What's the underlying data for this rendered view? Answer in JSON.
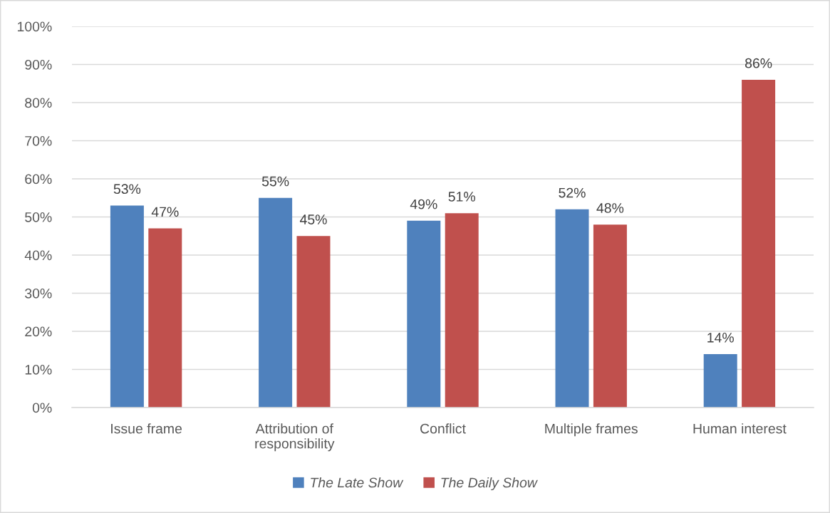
{
  "chart_data": {
    "type": "bar",
    "categories": [
      "Issue frame",
      "Attribution of\nresponsibility",
      "Conflict",
      "Multiple frames",
      "Human interest"
    ],
    "series": [
      {
        "name": "The Late Show",
        "color": "#4f81bd",
        "values": [
          53,
          55,
          49,
          52,
          14
        ],
        "value_labels": [
          "53%",
          "55%",
          "49%",
          "52%",
          "14%"
        ]
      },
      {
        "name": "The Daily Show",
        "color": "#c0504d",
        "values": [
          47,
          45,
          51,
          48,
          86
        ],
        "value_labels": [
          "47%",
          "45%",
          "51%",
          "48%",
          "86%"
        ]
      }
    ],
    "ylim": [
      0,
      100
    ],
    "yticks": [
      {
        "value": 0,
        "label": "0%"
      },
      {
        "value": 10,
        "label": "10%"
      },
      {
        "value": 20,
        "label": "20%"
      },
      {
        "value": 30,
        "label": "30%"
      },
      {
        "value": 40,
        "label": "40%"
      },
      {
        "value": 50,
        "label": "50%"
      },
      {
        "value": 60,
        "label": "60%"
      },
      {
        "value": 70,
        "label": "70%"
      },
      {
        "value": 80,
        "label": "80%"
      },
      {
        "value": 90,
        "label": "90%"
      },
      {
        "value": 100,
        "label": "100%"
      }
    ],
    "grid": "y",
    "legend": "bottom"
  }
}
